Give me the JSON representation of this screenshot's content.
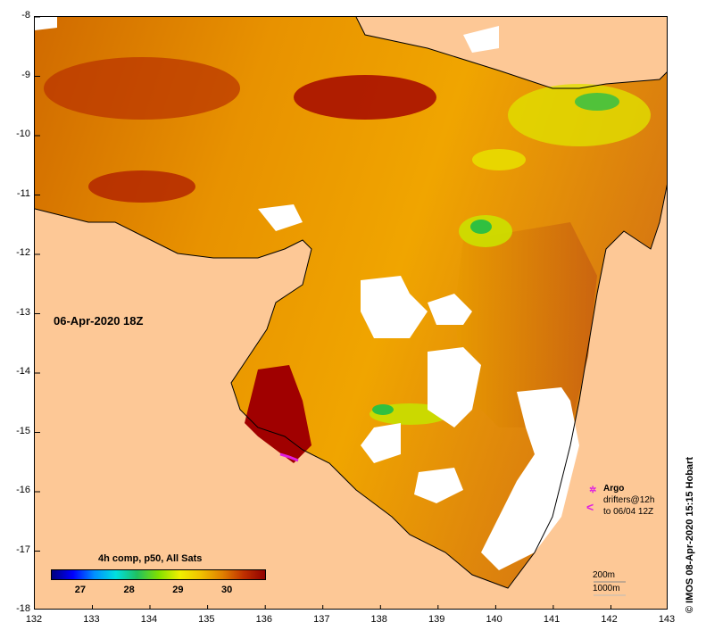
{
  "map": {
    "date_label": "06-Apr-2020 18Z",
    "lat_ticks": [
      "-8",
      "-9",
      "-10",
      "-11",
      "-12",
      "-13",
      "-14",
      "-15",
      "-16",
      "-17",
      "-18"
    ],
    "lon_ticks": [
      "132",
      "133",
      "134",
      "135",
      "136",
      "137",
      "138",
      "139",
      "140",
      "141",
      "142",
      "143"
    ],
    "lat_range": [
      -18,
      -8
    ],
    "lon_range": [
      132,
      143
    ],
    "colors": {
      "land": "#fdc896",
      "no_data": "#ffffff",
      "sst_hot": "#a00000",
      "sst_warm": "#d86a00",
      "sst_mid": "#f0a000",
      "sst_cool": "#e8e000",
      "sst_cold": "#2ec02e",
      "argo_drifter": "#e020e0"
    }
  },
  "colorbar": {
    "title": "4h comp, p50, All Sats",
    "labels": [
      "27",
      "28",
      "29",
      "30"
    ],
    "range": [
      26.4,
      30.8
    ],
    "colors": [
      "#00007f",
      "#0000ff",
      "#0090ff",
      "#00e0e0",
      "#20c060",
      "#80e000",
      "#f0f000",
      "#f0c000",
      "#e08000",
      "#c03000",
      "#900000"
    ]
  },
  "legend": {
    "argo_symbol": "✲",
    "argo_label": "Argo",
    "drifter_symbol": "<",
    "drifters_line1": "drifters@12h",
    "drifters_line2": "to 06/04 12Z",
    "contour_200": "200m",
    "contour_1000": "1000m"
  },
  "credit": "© IMOS 08-Apr-2020 15:15 Hobart"
}
